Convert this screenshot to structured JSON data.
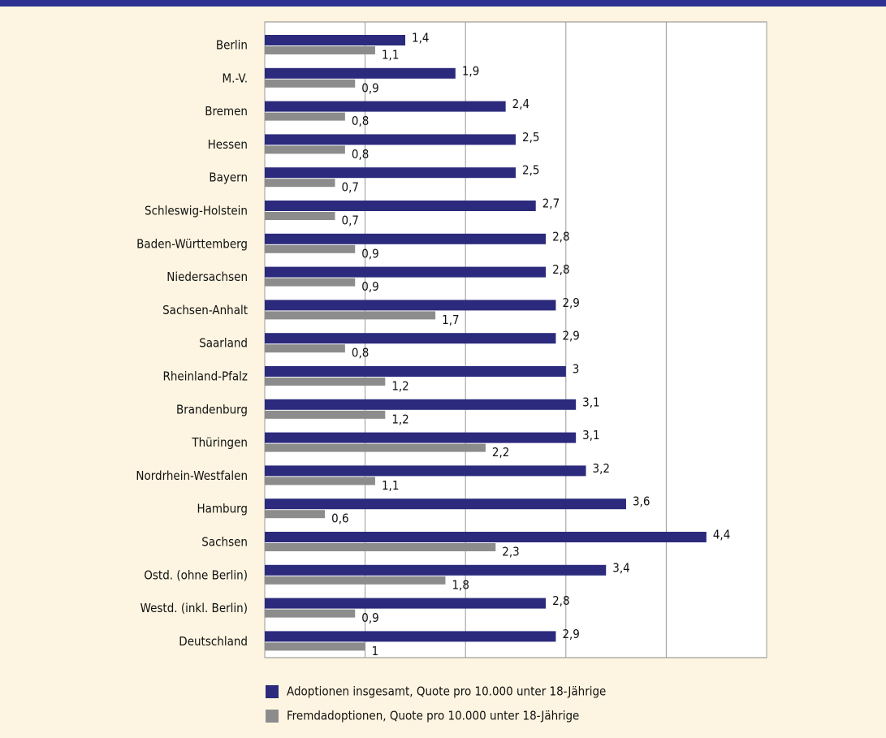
{
  "chart_data": {
    "type": "bar",
    "categories": [
      "Berlin",
      "M.-V.",
      "Bremen",
      "Hessen",
      "Bayern",
      "Schleswig-Holstein",
      "Baden-Württemberg",
      "Niedersachsen",
      "Sachsen-Anhalt",
      "Saarland",
      "Rheinland-Pfalz",
      "Brandenburg",
      "Thüringen",
      "Nordrhein-Westfalen",
      "Hamburg",
      "Sachsen",
      "Ostd. (ohne Berlin)",
      "Westd. (inkl. Berlin)",
      "Deutschland"
    ],
    "series": [
      {
        "name": "Adoptionen insgesamt, Quote pro 10.000 unter 18-Jährige",
        "color": "#2b2a7c",
        "values": [
          1.4,
          1.9,
          2.4,
          2.5,
          2.5,
          2.7,
          2.8,
          2.8,
          2.9,
          2.9,
          3,
          3.1,
          3.1,
          3.2,
          3.6,
          4.4,
          3.4,
          2.8,
          2.9
        ],
        "value_labels": [
          "1,4",
          "1,9",
          "2,4",
          "2,5",
          "2,5",
          "2,7",
          "2,8",
          "2,8",
          "2,9",
          "2,9",
          "3",
          "3,1",
          "3,1",
          "3,2",
          "3,6",
          "4,4",
          "3,4",
          "2,8",
          "2,9"
        ]
      },
      {
        "name": "Fremdadoptionen, Quote pro 10.000 unter 18-Jährige",
        "color": "#8c8c8c",
        "values": [
          1.1,
          0.9,
          0.8,
          0.8,
          0.7,
          0.7,
          0.9,
          0.9,
          1.7,
          0.8,
          1.2,
          1.2,
          2.2,
          1.1,
          0.6,
          2.3,
          1.8,
          0.9,
          1
        ],
        "value_labels": [
          "1,1",
          "0,9",
          "0,8",
          "0,8",
          "0,7",
          "0,7",
          "0,9",
          "0,9",
          "1,7",
          "0,8",
          "1,2",
          "1,2",
          "2,2",
          "1,1",
          "0,6",
          "2,3",
          "1,8",
          "0,9",
          "1"
        ]
      }
    ],
    "xlim": [
      0,
      5
    ],
    "xticks": [
      0,
      1,
      2,
      3,
      4,
      5
    ],
    "grid": true,
    "legend": "bottom"
  }
}
